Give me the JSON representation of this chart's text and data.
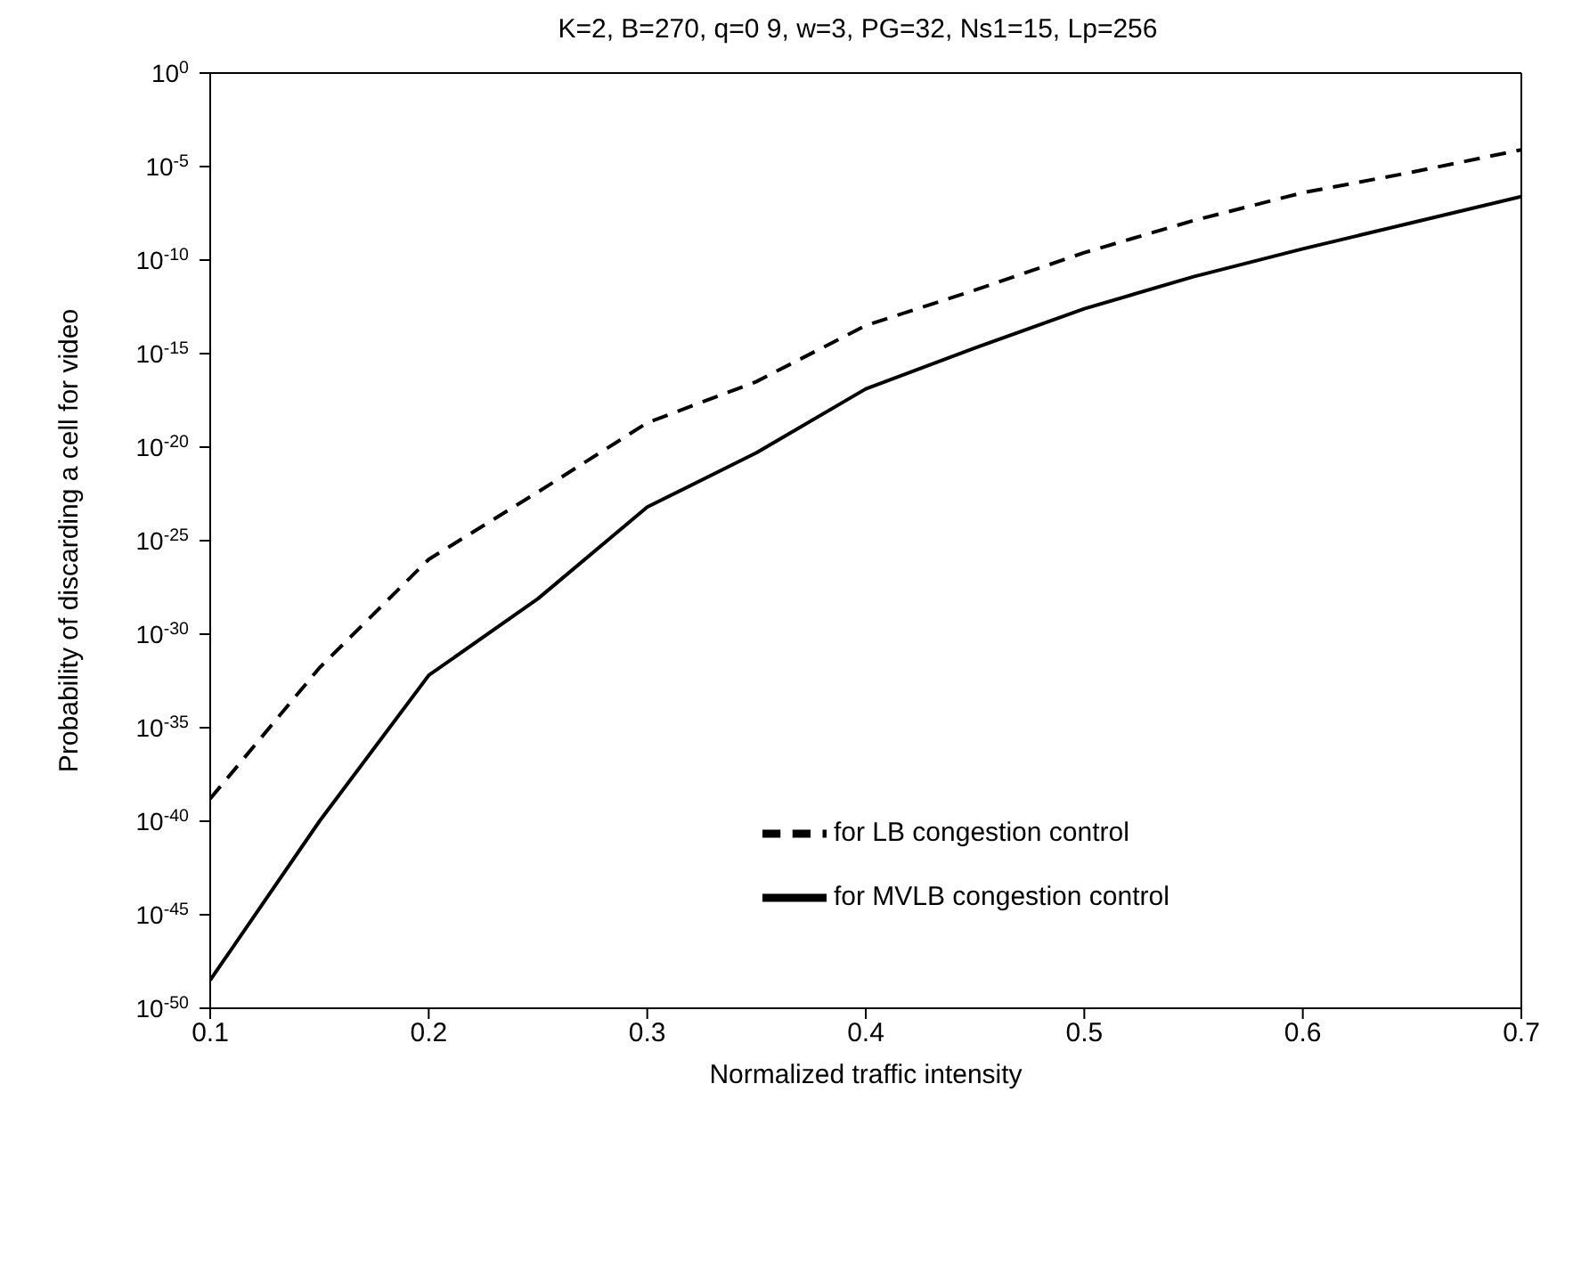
{
  "chart_data": {
    "type": "line",
    "title": "K=2, B=270, q=0 9, w=3, PG=32, Ns1=15, Lp=256",
    "xlabel": "Normalized traffic intensity",
    "ylabel": "Probability of discarding a cell for video",
    "x": [
      0.1,
      0.15,
      0.2,
      0.25,
      0.3,
      0.35,
      0.4,
      0.45,
      0.5,
      0.55,
      0.6,
      0.65,
      0.7
    ],
    "series": [
      {
        "name": "for MVLB congestion control",
        "color": "#000000",
        "line_style": "solid",
        "values": [
          3.2e-49,
          1e-40,
          6.3e-33,
          7.9e-29,
          6.3e-24,
          5e-21,
          1.3e-17,
          2e-15,
          2.5e-13,
          1.3e-11,
          4e-10,
          1e-08,
          2.5e-07
        ]
      },
      {
        "name": "for LB congestion control",
        "color": "#000000",
        "line_style": "dashed",
        "values": [
          1.6e-39,
          1.6e-32,
          1e-26,
          4e-23,
          2e-19,
          3.2e-17,
          3.2e-14,
          2.5e-12,
          2.5e-10,
          1.3e-08,
          4e-07,
          5e-06,
          7.9e-05
        ]
      }
    ],
    "log": "y",
    "xlim": [
      0.1,
      0.7
    ],
    "xticks": [
      0.1,
      0.2,
      0.3,
      0.4,
      0.5,
      0.6,
      0.7
    ],
    "ylim": [
      1e-50,
      1
    ],
    "yticks": [
      {
        "value": 1,
        "label": "10$^{0}$"
      },
      {
        "value": 1e-05,
        "label": "10$^{-5}$"
      },
      {
        "value": 1e-10,
        "label": "10$^{-10}$"
      },
      {
        "value": 1e-15,
        "label": "10$^{-15}$"
      },
      {
        "value": 1e-20,
        "label": "10$^{-20}$"
      },
      {
        "value": 1e-25,
        "label": "10$^{-25}$"
      },
      {
        "value": 1e-30,
        "label": "10$^{-30}$"
      },
      {
        "value": 1e-35,
        "label": "10$^{-35}$"
      },
      {
        "value": 1e-40,
        "label": "10$^{-40}$"
      },
      {
        "value": 1e-45,
        "label": "10$^{-45}$"
      },
      {
        "value": 1e-50,
        "label": "10$^{-50}$"
      }
    ],
    "grid": false,
    "legend": "right"
  }
}
